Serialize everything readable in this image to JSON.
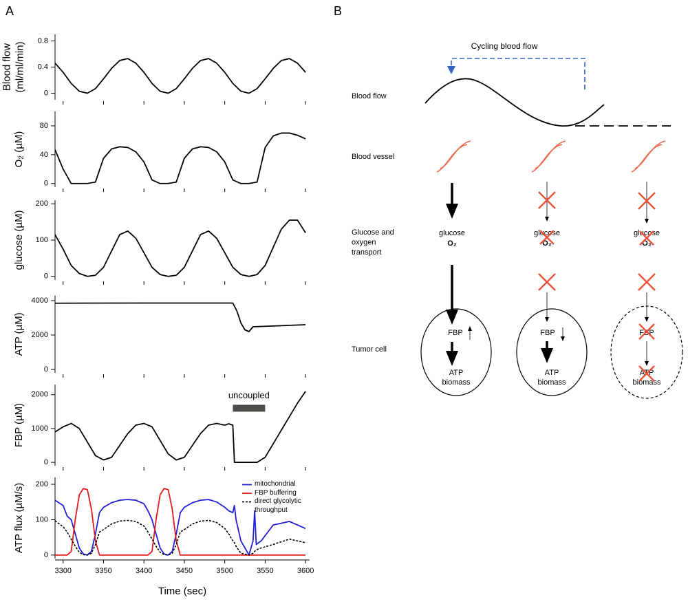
{
  "panels": [
    "A",
    "B"
  ],
  "chart_data": [
    {
      "type": "line",
      "ylabel": [
        "Blood flow",
        "(ml/ml/min)"
      ],
      "color": "#000000",
      "x": [
        3290,
        3300,
        3310,
        3320,
        3330,
        3340,
        3350,
        3360,
        3370,
        3380,
        3390,
        3400,
        3410,
        3420,
        3430,
        3440,
        3450,
        3460,
        3470,
        3480,
        3490,
        3500,
        3510,
        3520,
        3530,
        3540,
        3550,
        3560,
        3570,
        3580,
        3590,
        3600
      ],
      "values": [
        0.46,
        0.32,
        0.15,
        0.03,
        0,
        0.07,
        0.22,
        0.38,
        0.5,
        0.53,
        0.46,
        0.32,
        0.15,
        0.03,
        0,
        0.07,
        0.22,
        0.38,
        0.5,
        0.53,
        0.46,
        0.32,
        0.15,
        0.03,
        0,
        0.07,
        0.22,
        0.38,
        0.5,
        0.53,
        0.46,
        0.32
      ],
      "xlim": [
        3290,
        3605
      ],
      "xticks": [
        3300,
        3350,
        3400,
        3450,
        3500,
        3550,
        3600
      ],
      "ylim": [
        -0.1,
        0.9
      ],
      "yticks": [
        0,
        0.4,
        0.8
      ]
    },
    {
      "type": "line",
      "ylabel": [
        "O₂ (µM)"
      ],
      "color": "#000000",
      "x": [
        3290,
        3300,
        3310,
        3320,
        3330,
        3340,
        3350,
        3360,
        3370,
        3380,
        3390,
        3400,
        3410,
        3420,
        3430,
        3440,
        3450,
        3460,
        3470,
        3480,
        3490,
        3500,
        3510,
        3520,
        3530,
        3540,
        3550,
        3560,
        3570,
        3580,
        3590,
        3600
      ],
      "values": [
        47,
        20,
        0,
        0,
        0,
        2,
        35,
        48,
        51,
        50,
        44,
        30,
        5,
        0,
        0,
        2,
        35,
        48,
        51,
        50,
        44,
        30,
        5,
        0,
        0,
        2,
        50,
        66,
        70,
        70,
        67,
        62
      ],
      "xlim": [
        3290,
        3605
      ],
      "xticks": [
        3300,
        3350,
        3400,
        3450,
        3500,
        3550,
        3600
      ],
      "ylim": [
        -5,
        100
      ],
      "yticks": [
        0,
        40,
        80
      ]
    },
    {
      "type": "line",
      "ylabel": [
        "glucose (µM)"
      ],
      "color": "#000000",
      "x": [
        3290,
        3300,
        3310,
        3320,
        3330,
        3340,
        3350,
        3360,
        3370,
        3380,
        3390,
        3400,
        3410,
        3420,
        3430,
        3440,
        3450,
        3460,
        3470,
        3480,
        3490,
        3500,
        3510,
        3520,
        3530,
        3540,
        3550,
        3560,
        3570,
        3580,
        3590,
        3600
      ],
      "values": [
        115,
        75,
        30,
        8,
        0,
        3,
        25,
        70,
        115,
        125,
        105,
        65,
        25,
        5,
        0,
        3,
        25,
        70,
        115,
        125,
        105,
        65,
        25,
        5,
        0,
        5,
        30,
        80,
        130,
        155,
        155,
        120
      ],
      "xlim": [
        3290,
        3605
      ],
      "xticks": [
        3300,
        3350,
        3400,
        3450,
        3500,
        3550,
        3600
      ],
      "ylim": [
        -10,
        210
      ],
      "yticks": [
        0,
        100,
        200
      ]
    },
    {
      "type": "line",
      "ylabel": [
        "ATP (µM)"
      ],
      "color": "#000000",
      "x": [
        3290,
        3400,
        3510,
        3515,
        3520,
        3525,
        3530,
        3535,
        3600
      ],
      "values": [
        3850,
        3860,
        3860,
        3400,
        2700,
        2300,
        2200,
        2480,
        2600
      ],
      "xlim": [
        3290,
        3605
      ],
      "xticks": [
        3300,
        3350,
        3400,
        3450,
        3500,
        3550,
        3600
      ],
      "ylim": [
        -200,
        4300
      ],
      "yticks": [
        0,
        2000,
        4000
      ]
    },
    {
      "type": "line",
      "ylabel": [
        "FBP (µM)"
      ],
      "color": "#000000",
      "x": [
        3290,
        3300,
        3310,
        3320,
        3330,
        3340,
        3350,
        3360,
        3370,
        3380,
        3390,
        3400,
        3410,
        3420,
        3430,
        3440,
        3450,
        3460,
        3470,
        3480,
        3490,
        3500,
        3505,
        3510,
        3512,
        3520,
        3530,
        3540,
        3550,
        3560,
        3570,
        3580,
        3590,
        3600
      ],
      "values": [
        900,
        1050,
        1150,
        1000,
        600,
        200,
        70,
        150,
        500,
        850,
        1100,
        1150,
        1050,
        650,
        250,
        70,
        150,
        500,
        850,
        1100,
        1150,
        1100,
        1140,
        1100,
        0,
        0,
        0,
        0,
        150,
        550,
        950,
        1350,
        1750,
        2100
      ],
      "annotations": [
        {
          "text": "uncoupled",
          "x": [
            3510,
            3550
          ],
          "y": 1600,
          "color": "#4a4d48"
        }
      ],
      "xlim": [
        3290,
        3605
      ],
      "xticks": [
        3300,
        3350,
        3400,
        3450,
        3500,
        3550,
        3600
      ],
      "ylim": [
        -100,
        2300
      ],
      "yticks": [
        0,
        1000,
        2000
      ]
    },
    {
      "type": "line",
      "ylabel": [
        "ATP flux (µM/s)"
      ],
      "xlabel": "Time (sec)",
      "legend": "upper right",
      "x": [
        3290,
        3300,
        3305,
        3310,
        3315,
        3320,
        3325,
        3330,
        3335,
        3340,
        3345,
        3350,
        3360,
        3370,
        3380,
        3390,
        3400,
        3405,
        3410,
        3415,
        3420,
        3425,
        3430,
        3435,
        3440,
        3445,
        3450,
        3460,
        3470,
        3480,
        3490,
        3500,
        3505,
        3510,
        3512,
        3514,
        3520,
        3530,
        3535,
        3537,
        3539,
        3545,
        3560,
        3580,
        3600
      ],
      "series": [
        {
          "name": "mitochondrial",
          "color": "#1f1fd6",
          "dashed": false,
          "values": [
            155,
            140,
            110,
            100,
            60,
            20,
            3,
            0,
            10,
            60,
            120,
            135,
            148,
            155,
            157,
            155,
            145,
            125,
            100,
            60,
            20,
            3,
            0,
            10,
            60,
            120,
            135,
            148,
            155,
            157,
            150,
            135,
            125,
            120,
            140,
            100,
            40,
            0,
            40,
            125,
            30,
            40,
            85,
            95,
            75
          ]
        },
        {
          "name": "FBP buffering",
          "color": "#e01b1b",
          "dashed": false,
          "values": [
            0,
            0,
            0,
            10,
            100,
            170,
            188,
            185,
            130,
            40,
            0,
            0,
            0,
            0,
            0,
            0,
            0,
            0,
            10,
            100,
            170,
            188,
            185,
            130,
            40,
            0,
            0,
            0,
            0,
            0,
            0,
            0,
            0,
            0,
            0,
            0,
            0,
            0,
            0,
            0,
            0,
            0,
            0,
            0,
            0
          ]
        },
        {
          "name": "direct glycolytic throughput",
          "color": "#000000",
          "dashed": true,
          "values": [
            97,
            80,
            65,
            45,
            25,
            8,
            1,
            0,
            5,
            30,
            65,
            72,
            88,
            96,
            98,
            95,
            82,
            65,
            45,
            25,
            8,
            1,
            0,
            5,
            30,
            65,
            72,
            88,
            96,
            98,
            92,
            75,
            60,
            40,
            35,
            25,
            5,
            0,
            5,
            10,
            15,
            20,
            30,
            45,
            35
          ]
        }
      ],
      "xlim": [
        3290,
        3605
      ],
      "xticks": [
        3300,
        3350,
        3400,
        3450,
        3500,
        3550,
        3600
      ],
      "ylim": [
        -10,
        220
      ],
      "yticks": [
        0,
        100,
        200
      ]
    }
  ],
  "diagram": {
    "cycle_label": "Cycling blood flow",
    "rows": [
      [
        "Blood flow"
      ],
      [
        "Blood vessel"
      ],
      [
        "Glucose and",
        "oxygen",
        "transport"
      ],
      [
        "Tumor cell"
      ]
    ],
    "columns": [
      {
        "glucose": "glucose",
        "o2": "O₂",
        "fbp": "FBP",
        "atp": "ATP",
        "biomass": "biomass"
      },
      {
        "glucose": "glucose",
        "o2": "O₂",
        "fbp": "FBP",
        "atp": "ATP",
        "biomass": "biomass"
      },
      {
        "glucose": "glucose",
        "o2": "O₂",
        "fbp": "FBP",
        "atp": "ATP",
        "biomass": "biomass"
      }
    ]
  }
}
